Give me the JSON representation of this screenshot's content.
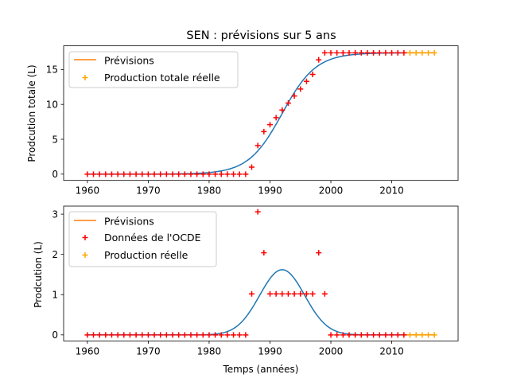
{
  "colors": {
    "forecast": "#ff7f0e",
    "model": "#1f77b4",
    "oecd": "#ff0000",
    "real": "#ffa500",
    "axis": "#000000",
    "legend_border": "#cccccc"
  },
  "chart_data": [
    {
      "type": "line",
      "title": "SEN : prévisions sur 5 ans",
      "xlabel": "",
      "ylabel": "Prodcution totale (L)",
      "xlim": [
        1956.1,
        2020.9
      ],
      "ylim": [
        -0.9,
        18.4
      ],
      "xticks": [
        1960,
        1970,
        1980,
        1990,
        2000,
        2010
      ],
      "yticks": [
        0,
        5,
        10,
        15
      ],
      "grid": false,
      "legend_position": "upper-left",
      "legend": [
        "Prévisions",
        "Production totale réelle"
      ],
      "model_curve": {
        "type": "logistic",
        "L": 17.4,
        "x0": 1992.0,
        "k": 0.36,
        "x_start": 1960,
        "x_end": 2012
      },
      "forecast": {
        "x": [
          2012,
          2013,
          2014,
          2015,
          2016,
          2017
        ],
        "y": [
          17.4,
          17.4,
          17.4,
          17.4,
          17.4,
          17.4
        ]
      },
      "oecd_data": {
        "x": [
          1960,
          1961,
          1962,
          1963,
          1964,
          1965,
          1966,
          1967,
          1968,
          1969,
          1970,
          1971,
          1972,
          1973,
          1974,
          1975,
          1976,
          1977,
          1978,
          1979,
          1980,
          1981,
          1982,
          1983,
          1984,
          1985,
          1986,
          1987,
          1988,
          1989,
          1990,
          1991,
          1992,
          1993,
          1994,
          1995,
          1996,
          1997,
          1998,
          1999,
          2000,
          2001,
          2002,
          2003,
          2004,
          2005,
          2006,
          2007,
          2008,
          2009,
          2010,
          2011,
          2012
        ],
        "y": [
          0,
          0,
          0,
          0,
          0,
          0,
          0,
          0,
          0,
          0,
          0,
          0,
          0,
          0,
          0,
          0,
          0,
          0,
          0,
          0,
          0,
          0,
          0,
          0,
          0,
          0,
          0,
          1.0,
          4.1,
          6.1,
          7.1,
          8.1,
          9.2,
          10.2,
          11.2,
          12.2,
          13.3,
          14.3,
          16.4,
          17.4,
          17.4,
          17.4,
          17.4,
          17.4,
          17.4,
          17.4,
          17.4,
          17.4,
          17.4,
          17.4,
          17.4,
          17.4,
          17.4
        ]
      },
      "real_data": {
        "x": [
          2013,
          2014,
          2015,
          2016,
          2017
        ],
        "y": [
          17.4,
          17.4,
          17.4,
          17.4,
          17.4
        ]
      }
    },
    {
      "type": "line",
      "title": "",
      "xlabel": "Temps (années)",
      "ylabel": "Prodcution (L)",
      "xlim": [
        1956.1,
        2020.9
      ],
      "ylim": [
        -0.15,
        3.2
      ],
      "xticks": [
        1960,
        1970,
        1980,
        1990,
        2000,
        2010
      ],
      "yticks": [
        0,
        1,
        2,
        3
      ],
      "grid": false,
      "legend_position": "upper-left",
      "legend": [
        "Prévisions",
        "Données de l'OCDE",
        "Production réelle"
      ],
      "model_curve": {
        "type": "gaussian",
        "A": 1.62,
        "mu": 1992.0,
        "sigma": 3.7,
        "x_start": 1960,
        "x_end": 2012
      },
      "forecast": {
        "x": [
          2012,
          2013,
          2014,
          2015,
          2016,
          2017
        ],
        "y": [
          0,
          0,
          0,
          0,
          0,
          0
        ]
      },
      "oecd_data": {
        "x": [
          1960,
          1961,
          1962,
          1963,
          1964,
          1965,
          1966,
          1967,
          1968,
          1969,
          1970,
          1971,
          1972,
          1973,
          1974,
          1975,
          1976,
          1977,
          1978,
          1979,
          1980,
          1981,
          1982,
          1983,
          1984,
          1985,
          1986,
          1987,
          1988,
          1989,
          1990,
          1991,
          1992,
          1993,
          1994,
          1995,
          1996,
          1997,
          1998,
          1999,
          2000,
          2001,
          2002,
          2003,
          2004,
          2005,
          2006,
          2007,
          2008,
          2009,
          2010,
          2011,
          2012
        ],
        "y": [
          0,
          0,
          0,
          0,
          0,
          0,
          0,
          0,
          0,
          0,
          0,
          0,
          0,
          0,
          0,
          0,
          0,
          0,
          0,
          0,
          0,
          0,
          0,
          0,
          0,
          0,
          0,
          1.02,
          3.06,
          2.04,
          1.02,
          1.02,
          1.02,
          1.02,
          1.02,
          1.02,
          1.02,
          1.02,
          2.04,
          1.02,
          0,
          0,
          0,
          0,
          0,
          0,
          0,
          0,
          0,
          0,
          0,
          0,
          0
        ]
      },
      "real_data": {
        "x": [
          2013,
          2014,
          2015,
          2016,
          2017
        ],
        "y": [
          0,
          0,
          0,
          0,
          0
        ]
      }
    }
  ]
}
